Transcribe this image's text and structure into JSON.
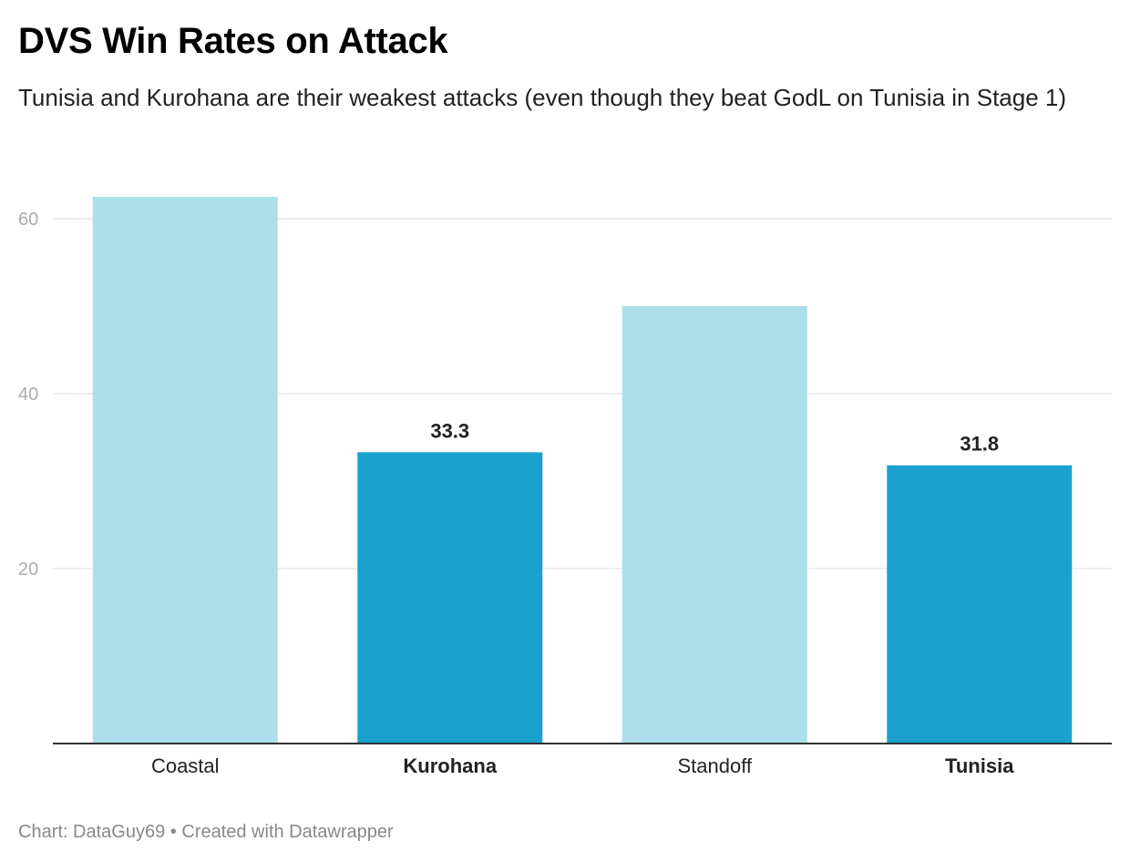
{
  "title": "DVS Win Rates on Attack",
  "subtitle": "Tunisia and Kurohana are their weakest attacks (even though they beat GodL on Tunisia in Stage 1)",
  "footer": {
    "source": "Chart: DataGuy69",
    "separator": "•",
    "credit": "Created with Datawrapper"
  },
  "chart_data": {
    "type": "bar",
    "categories": [
      "Coastal",
      "Kurohana",
      "Standoff",
      "Tunisia"
    ],
    "values": [
      62.5,
      33.3,
      50.0,
      31.8
    ],
    "highlighted": [
      false,
      true,
      false,
      true
    ],
    "value_labels": [
      "",
      "33.3",
      "",
      "31.8"
    ],
    "yticks": [
      20,
      40,
      60
    ],
    "ylim": [
      0,
      66
    ],
    "grid": true,
    "colors": {
      "bar": "#addeec",
      "highlight": "#1aa1cd",
      "grid": "#e2e2e2",
      "axis": "#333333",
      "tick_label": "#aaaaaa",
      "category_label": "#222222"
    }
  }
}
